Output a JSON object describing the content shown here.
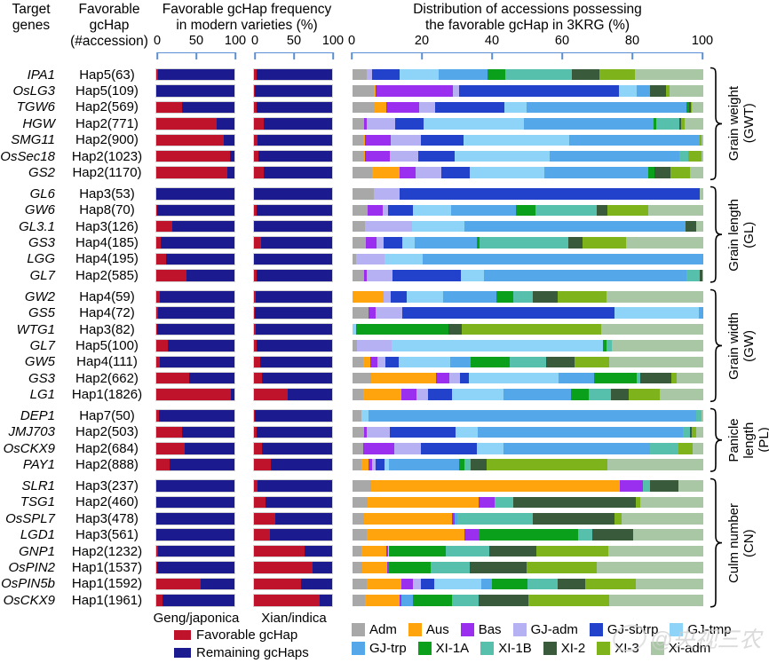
{
  "header": {
    "target_genes": "Target\ngenes",
    "favorable_gchap": "Favorable\ngcHap\n(#accession)",
    "freq_title": "Favorable gcHap frequency\nin modern varieties (%)",
    "dist_title": "Distribution of accessions possessing\nthe favorable gcHap in 3KRG (%)"
  },
  "axes": {
    "mini_ticks": [
      "0",
      "50",
      "100"
    ],
    "main_ticks": [
      "0",
      "20",
      "40",
      "60",
      "80",
      "100"
    ]
  },
  "footer": {
    "geng_label": "Geng/japonica",
    "xian_label": "Xian/indica"
  },
  "bar_legend": [
    {
      "label": "Favorable gcHap",
      "color": "#bf132c"
    },
    {
      "label": "Remaining gcHaps",
      "color": "#1b1b8f"
    }
  ],
  "pop_legend": {
    "row1": [
      {
        "name": "Adm",
        "color": "#a8a8a8"
      },
      {
        "name": "Aus",
        "color": "#ffa40d"
      },
      {
        "name": "Bas",
        "color": "#9a2fef"
      },
      {
        "name": "GJ-adm",
        "color": "#b6b1f2"
      },
      {
        "name": "GJ-sbtrp",
        "color": "#2342cb"
      },
      {
        "name": "GJ-tmp",
        "color": "#8ed3f8"
      }
    ],
    "row2": [
      {
        "name": "GJ-trp",
        "color": "#54a7e9"
      },
      {
        "name": "XI-1A",
        "color": "#0aa01c"
      },
      {
        "name": "XI-1B",
        "color": "#56c0ac"
      },
      {
        "name": "XI-2",
        "color": "#3a5a3c"
      },
      {
        "name": "XI-3",
        "color": "#7eb31b"
      },
      {
        "name": "Xi-adm",
        "color": "#a9c7a4"
      }
    ]
  },
  "watermark": "@央视三农",
  "chart_data": {
    "type": "bar",
    "subtype": "horizontal-stacked-panel",
    "mini_axis_range": [
      0,
      100
    ],
    "main_axis_range": [
      0,
      100
    ],
    "dist_series_order": [
      "Adm",
      "Aus",
      "Bas",
      "GJ-adm",
      "GJ-sbtrp",
      "GJ-tmp",
      "GJ-trp",
      "XI-1A",
      "XI-1B",
      "XI-2",
      "XI-3",
      "Xi-adm"
    ],
    "groups": [
      {
        "label": "Grain weight\n(GWT)",
        "rows": [
          {
            "gene": "IPA1",
            "hap": "Hap5(63)",
            "geng": 2,
            "xian": 3,
            "dist": [
              4,
              0,
              0,
              1.5,
              8,
              11,
              14,
              5,
              19,
              8,
              10,
              19.5
            ]
          },
          {
            "gene": "OsLG3",
            "hap": "Hap5(109)",
            "geng": 0.5,
            "xian": 1,
            "dist": [
              6,
              0.7,
              22,
              1.7,
              45.5,
              5,
              4,
              0,
              0,
              4.6,
              0.8,
              9.7
            ]
          },
          {
            "gene": "TGW6",
            "hap": "Hap2(569)",
            "geng": 33,
            "xian": 3,
            "dist": [
              6.3,
              3.4,
              9.3,
              4.6,
              19.8,
              6.3,
              45.5,
              0.8,
              0,
              0.4,
              0.4,
              3.2
            ]
          },
          {
            "gene": "HGW",
            "hap": "Hap2(771)",
            "geng": 77,
            "xian": 12,
            "dist": [
              3.2,
              0,
              0.8,
              8.2,
              8,
              28.7,
              37,
              0.7,
              6.5,
              0.5,
              1,
              5.4
            ]
          },
          {
            "gene": "SMG11",
            "hap": "Hap2(900)",
            "geng": 86,
            "xian": 4,
            "dist": [
              3,
              0.5,
              7.4,
              8.6,
              12.2,
              30,
              37.3,
              0,
              0,
              0,
              0.5,
              0.5
            ]
          },
          {
            "gene": "OsSec18",
            "hap": "Hap2(1023)",
            "geng": 94,
            "xian": 6,
            "dist": [
              3.2,
              0.3,
              7.2,
              8,
              10.5,
              27,
              37,
              0,
              2.5,
              0,
              3.8,
              0.5
            ]
          },
          {
            "gene": "GS2",
            "hap": "Hap2(1170)",
            "geng": 91,
            "xian": 13,
            "dist": [
              5.5,
              8,
              4.6,
              7.2,
              8,
              21.5,
              29.5,
              1.7,
              0,
              4.6,
              5.5,
              3.9
            ]
          }
        ]
      },
      {
        "label": "Grain length\n(GL)",
        "rows": [
          {
            "gene": "GL6",
            "hap": "Hap3(53)",
            "geng": 0,
            "xian": 0,
            "dist": [
              6,
              0,
              0,
              7.5,
              85.5,
              0,
              0,
              0,
              0,
              0,
              0,
              1
            ]
          },
          {
            "gene": "GW6",
            "hap": "Hap8(70)",
            "geng": 1.5,
            "xian": 3,
            "dist": [
              4.2,
              0,
              4.5,
              1.5,
              7,
              11,
              18.5,
              5.5,
              17.5,
              3,
              11.5,
              15.8
            ]
          },
          {
            "gene": "GL3.1",
            "hap": "Hap3(126)",
            "geng": 20,
            "xian": 0.5,
            "dist": [
              3.5,
              0,
              0,
              13.5,
              0,
              15,
              63,
              0,
              0,
              3,
              0,
              2
            ]
          },
          {
            "gene": "GS3",
            "hap": "Hap4(185)",
            "geng": 6,
            "xian": 9,
            "dist": [
              3.8,
              0,
              3,
              2,
              5.5,
              3.4,
              17.7,
              0.7,
              25.4,
              4.2,
              12.2,
              22.1
            ]
          },
          {
            "gene": "LGG",
            "hap": "Hap4(195)",
            "geng": 12,
            "xian": 0.5,
            "dist": [
              1,
              0,
              0,
              8,
              0,
              11,
              80,
              0,
              0,
              0,
              0,
              0
            ]
          },
          {
            "gene": "GL7",
            "hap": "Hap2(585)",
            "geng": 39,
            "xian": 3,
            "dist": [
              3.4,
              0,
              0.7,
              7.3,
              19.4,
              6.7,
              57.8,
              0,
              3.8,
              0.7,
              0,
              0.2
            ]
          }
        ]
      },
      {
        "label": "Grain width\n(GW)",
        "rows": [
          {
            "gene": "GW2",
            "hap": "Hap4(59)",
            "geng": 5,
            "xian": 2,
            "dist": [
              0,
              8.8,
              0,
              2,
              4.6,
              10.5,
              15,
              5,
              5.5,
              7,
              14,
              27.6
            ]
          },
          {
            "gene": "GS5",
            "hap": "Hap4(72)",
            "geng": 2,
            "xian": 1,
            "dist": [
              4.6,
              0,
              2,
              7.5,
              60.5,
              24.2,
              1.2,
              0,
              0,
              0,
              0,
              0
            ]
          },
          {
            "gene": "WTG1",
            "hap": "Hap3(82)",
            "geng": 1,
            "xian": 2,
            "dist": [
              0,
              0,
              0,
              0,
              0,
              1,
              0,
              26.3,
              0,
              3.8,
              39.9,
              29
            ]
          },
          {
            "gene": "GL7",
            "hap": "Hap5(100)",
            "geng": 15,
            "xian": 3,
            "dist": [
              1.2,
              0,
              0,
              10,
              0,
              60.3,
              0,
              1,
              1.5,
              0,
              0,
              26
            ]
          },
          {
            "gene": "GW5",
            "hap": "Hap4(111)",
            "geng": 4,
            "xian": 8,
            "dist": [
              3,
              2,
              2,
              2.3,
              3.8,
              14.7,
              6,
              11,
              10.5,
              8,
              10,
              26.7
            ]
          },
          {
            "gene": "GS3",
            "hap": "Hap2(662)",
            "geng": 42,
            "xian": 10,
            "dist": [
              5.2,
              18.7,
              3.8,
              3,
              2.5,
              25.6,
              10,
              12.2,
              1,
              8.8,
              1.7,
              7.5
            ]
          },
          {
            "gene": "LG1",
            "hap": "Hap1(1826)",
            "geng": 95,
            "xian": 43,
            "dist": [
              3,
              11,
              4.2,
              3.4,
              6.7,
              14.7,
              19.4,
              5,
              6.3,
              5,
              8.8,
              12.5
            ]
          }
        ]
      },
      {
        "label": "Panicle length\n(PL)",
        "rows": [
          {
            "gene": "DEP1",
            "hap": "Hap7(50)",
            "geng": 3,
            "xian": 1,
            "dist": [
              2.5,
              0,
              0,
              0,
              0,
              2,
              93.5,
              0,
              1.5,
              0,
              0,
              0.5
            ]
          },
          {
            "gene": "JMJ703",
            "hap": "Hap2(503)",
            "geng": 33,
            "xian": 3,
            "dist": [
              3.2,
              0,
              0.8,
              6.7,
              18.8,
              6.2,
              58.5,
              0,
              2,
              0.5,
              1.3,
              2
            ]
          },
          {
            "gene": "OsCKX9",
            "hap": "Hap2(684)",
            "geng": 36,
            "xian": 10,
            "dist": [
              3,
              0,
              8.8,
              7.6,
              16,
              7.6,
              41.8,
              0,
              8,
              0,
              4.2,
              3
            ]
          },
          {
            "gene": "PAY1",
            "hap": "Hap2(888)",
            "geng": 17,
            "xian": 22,
            "dist": [
              2.5,
              2,
              1,
              1,
              2.5,
              1.5,
              19.8,
              1.7,
              1.7,
              4.6,
              34.4,
              27.3
            ]
          }
        ]
      },
      {
        "label": "Culm number\n(CN)",
        "rows": [
          {
            "gene": "SLR1",
            "hap": "Hap3(237)",
            "geng": 0,
            "xian": 4,
            "dist": [
              5.2,
              71,
              6.7,
              0,
              0,
              0,
              0,
              0,
              2,
              8,
              0,
              7.1
            ]
          },
          {
            "gene": "TSG1",
            "hap": "Hap2(460)",
            "geng": 0,
            "xian": 15,
            "dist": [
              4.4,
              31.6,
              4.5,
              0,
              0,
              0,
              0,
              0,
              5.3,
              35,
              1.3,
              17.9
            ]
          },
          {
            "gene": "OsSPL7",
            "hap": "Hap3(478)",
            "geng": 0,
            "xian": 27,
            "dist": [
              3.4,
              25,
              0.8,
              0,
              0,
              0,
              0.8,
              0,
              21.4,
              23.4,
              2,
              23.2
            ]
          },
          {
            "gene": "LGD1",
            "hap": "Hap3(561)",
            "geng": 0,
            "xian": 21,
            "dist": [
              4,
              27.8,
              4.2,
              0,
              0,
              0,
              0,
              28.4,
              4,
              11.6,
              0,
              20
            ]
          },
          {
            "gene": "GNP1",
            "hap": "Hap2(1232)",
            "geng": 2,
            "xian": 65,
            "dist": [
              2.5,
              7,
              0.7,
              0,
              0,
              0.3,
              0,
              16,
              12.6,
              13.4,
              20.5,
              27
            ]
          },
          {
            "gene": "OsPIN2",
            "hap": "Hap1(1537)",
            "geng": 1,
            "xian": 75,
            "dist": [
              2.7,
              7.2,
              0.5,
              0,
              0,
              0,
              0,
              11.8,
              11.2,
              16.2,
              20,
              30.4
            ]
          },
          {
            "gene": "OsPIN5b",
            "hap": "Hap1(1592)",
            "geng": 57,
            "xian": 60,
            "dist": [
              4,
              9.8,
              3.4,
              2.3,
              3.9,
              13.4,
              2.9,
              10.3,
              8.4,
              8,
              14.5,
              19.1
            ]
          },
          {
            "gene": "OsCKX9",
            "hap": "Hap1(1961)",
            "geng": 7.5,
            "xian": 84,
            "dist": [
              3.5,
              9.8,
              0.6,
              0,
              0,
              0,
              3.4,
              11,
              7.6,
              14.3,
              23,
              26.8
            ]
          }
        ]
      }
    ]
  }
}
